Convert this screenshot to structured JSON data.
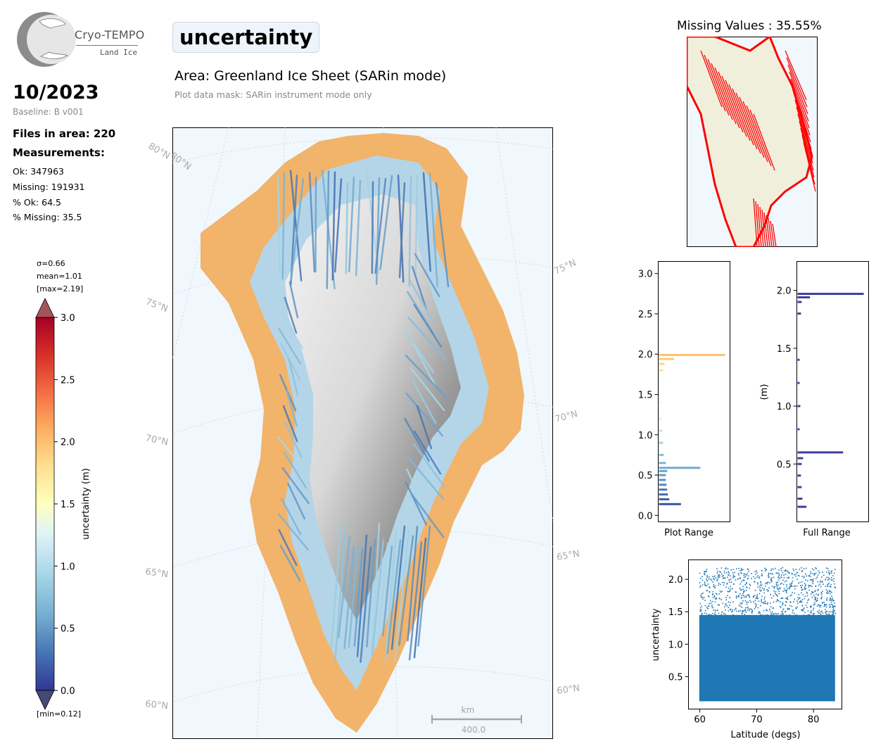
{
  "header": {
    "logo_name": "Cryo-TEMPO",
    "logo_subtitle": "Land Ice",
    "date": "10/2023",
    "baseline": "Baseline: B v001",
    "files": "Files in area: 220",
    "measurements_title": "Measurements:",
    "stats": [
      "Ok: 347963",
      "Missing: 191931",
      "% Ok: 64.5",
      "% Missing: 35.5"
    ],
    "variable": "uncertainty",
    "area": "Area: Greenland Ice Sheet (SARin mode)",
    "mask": "Plot data mask: SARin instrument mode only"
  },
  "colors": {
    "ocean": "#f0f7fd",
    "land": "#f0efdc",
    "missing": "#ff0000",
    "scatter": "#1f77b4",
    "full_range_hist": "#3f3f9f"
  },
  "chart_data": [
    {
      "type": "colorbar",
      "label": "uncertainty (m)",
      "ticks": [
        "0.0",
        "0.5",
        "1.0",
        "1.5",
        "2.0",
        "2.5",
        "3.0"
      ],
      "range": [
        0,
        3
      ],
      "colormap": "RdYlBu_r",
      "stats": [
        "σ=0.66",
        "mean=1.01",
        "[max=2.19]"
      ],
      "min_label": "[min=0.12]"
    },
    {
      "type": "map",
      "region": "Greenland",
      "latitude_labels_left": [
        "80°N",
        "75°N",
        "70°N",
        "65°N",
        "60°N"
      ],
      "latitude_labels_right": [
        "75°N",
        "70°N",
        "65°N",
        "60°N"
      ],
      "scalebar_unit": "km",
      "scalebar_value": "400.0"
    },
    {
      "type": "map",
      "title": "Missing Values : 35.55%",
      "region": "Greenland"
    },
    {
      "type": "bar",
      "orientation": "horizontal",
      "xlabel": "Plot Range",
      "ylim": [
        -0.08,
        3.15
      ],
      "ticks": [
        "0.0",
        "0.5",
        "1.0",
        "1.5",
        "2.0",
        "2.5",
        "3.0"
      ],
      "bins": [
        {
          "y": 0.14,
          "count": 0.32
        },
        {
          "y": 0.2,
          "count": 0.15
        },
        {
          "y": 0.26,
          "count": 0.13
        },
        {
          "y": 0.32,
          "count": 0.12
        },
        {
          "y": 0.38,
          "count": 0.11
        },
        {
          "y": 0.44,
          "count": 0.1
        },
        {
          "y": 0.5,
          "count": 0.1
        },
        {
          "y": 0.55,
          "count": 0.12
        },
        {
          "y": 0.59,
          "count": 0.6
        },
        {
          "y": 0.65,
          "count": 0.1
        },
        {
          "y": 0.75,
          "count": 0.07
        },
        {
          "y": 0.9,
          "count": 0.06
        },
        {
          "y": 1.05,
          "count": 0.05
        },
        {
          "y": 1.2,
          "count": 0.04
        },
        {
          "y": 1.4,
          "count": 0.04
        },
        {
          "y": 1.8,
          "count": 0.06
        },
        {
          "y": 1.88,
          "count": 0.08
        },
        {
          "y": 1.94,
          "count": 0.22
        },
        {
          "y": 1.99,
          "count": 0.96
        }
      ]
    },
    {
      "type": "bar",
      "orientation": "horizontal",
      "xlabel": "Full Range",
      "ylabel": "(m)",
      "ylim": [
        0.0,
        2.25
      ],
      "ticks": [
        "0.5",
        "1.0",
        "1.5",
        "2.0"
      ],
      "bins": [
        {
          "y": 0.13,
          "count": 0.13
        },
        {
          "y": 0.2,
          "count": 0.07
        },
        {
          "y": 0.3,
          "count": 0.06
        },
        {
          "y": 0.4,
          "count": 0.05
        },
        {
          "y": 0.5,
          "count": 0.06
        },
        {
          "y": 0.55,
          "count": 0.08
        },
        {
          "y": 0.6,
          "count": 0.66
        },
        {
          "y": 0.8,
          "count": 0.03
        },
        {
          "y": 1.0,
          "count": 0.04
        },
        {
          "y": 1.2,
          "count": 0.03
        },
        {
          "y": 1.4,
          "count": 0.03
        },
        {
          "y": 1.8,
          "count": 0.05
        },
        {
          "y": 1.9,
          "count": 0.06
        },
        {
          "y": 1.94,
          "count": 0.18
        },
        {
          "y": 1.97,
          "count": 0.96
        }
      ]
    },
    {
      "type": "scatter",
      "xlabel": "Latitude (degs)",
      "ylabel": "uncertainty",
      "xlim": [
        58,
        85
      ],
      "ylim": [
        0,
        2.3
      ],
      "xticks": [
        "60",
        "70",
        "80"
      ],
      "yticks": [
        "0.5",
        "1.0",
        "1.5",
        "2.0"
      ],
      "x_range": [
        59.9,
        83.8
      ],
      "y_range": [
        0.12,
        2.19
      ]
    }
  ]
}
